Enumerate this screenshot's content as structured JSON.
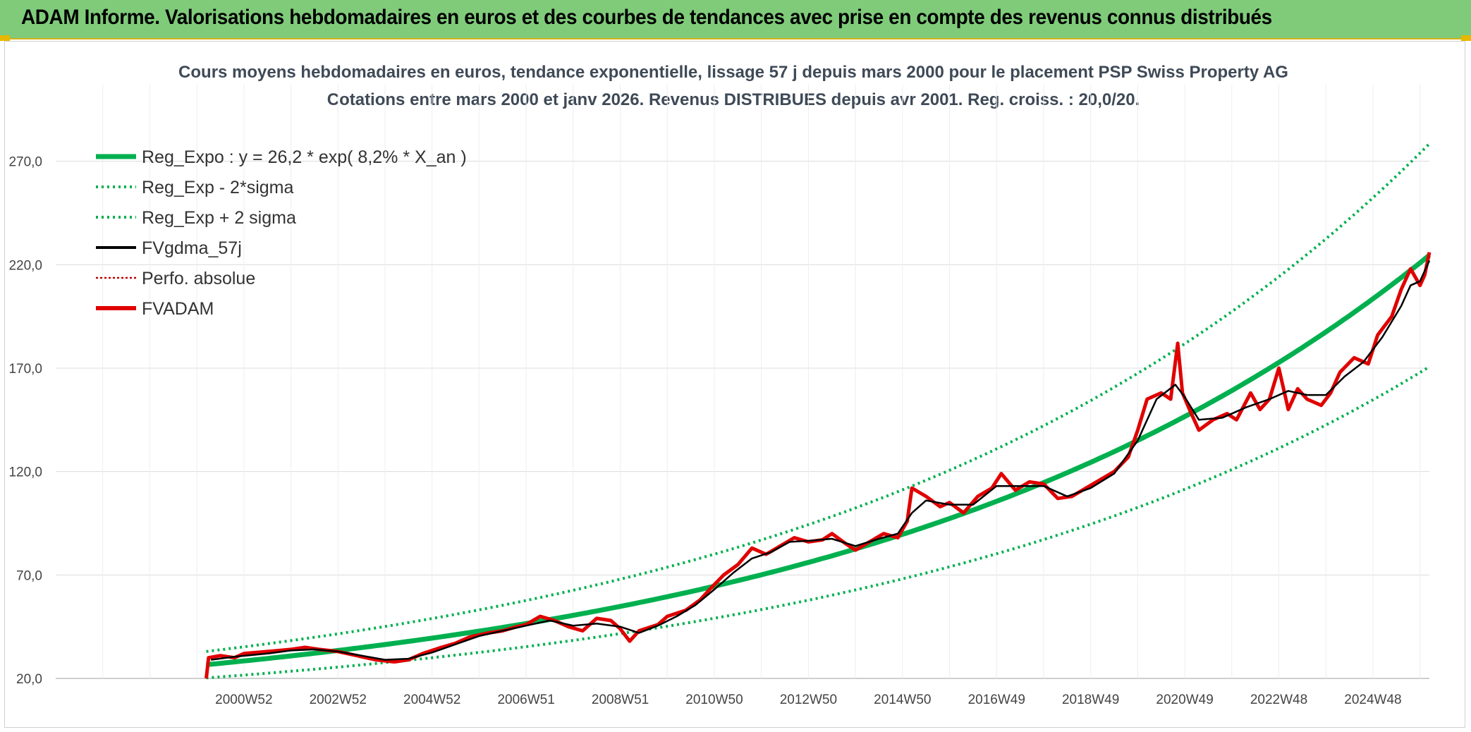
{
  "header": {
    "title": "ADAM Informe. Valorisations hebdomadaires en euros et des courbes de tendances avec prise en compte des revenus connus distribués"
  },
  "colors": {
    "trend": "#00b04f",
    "band": "#00b04f",
    "gdma": "#000000",
    "perfo": "#c00000",
    "fvadam": "#e00000",
    "grid": "#dcdcdc",
    "banner": "#7fcb7a"
  },
  "chart_data": {
    "type": "line",
    "title_line1": "Cours moyens hebdomadaires en euros, tendance exponentielle, lissage 57 j depuis mars 2000 pour le placement PSP Swiss Property AG",
    "title_line2": "Cotations entre mars 2000 et janv 2026. Revenus DISTRIBUES depuis avr 2001. Reg. croiss. : 20,0/20.",
    "ylim": [
      20,
      290
    ],
    "y_ticks": [
      "20,0",
      "70,0",
      "120,0",
      "170,0",
      "220,0",
      "270,0"
    ],
    "y_tick_values": [
      20,
      70,
      120,
      170,
      220,
      270
    ],
    "x_ticks": [
      "2000W52",
      "2002W52",
      "2004W52",
      "2006W51",
      "2008W51",
      "2010W50",
      "2012W50",
      "2014W50",
      "2016W49",
      "2018W49",
      "2020W49",
      "2022W48",
      "2024W48"
    ],
    "x_tick_years": [
      2001,
      2003,
      2005,
      2007,
      2009,
      2011,
      2013,
      2015,
      2017,
      2019,
      2021,
      2023,
      2025
    ],
    "x_range_years": [
      1997,
      2026.2
    ],
    "series_start_year": 2000.2,
    "trend": {
      "a": 26.2,
      "rate": 0.082,
      "sigma_factor": 0.24
    },
    "legend": [
      {
        "label": "Reg_Expo : y = 26,2 * exp( 8,2% *  X_an )",
        "style": "trend"
      },
      {
        "label": "Reg_Exp - 2*sigma",
        "style": "band"
      },
      {
        "label": "Reg_Exp + 2 sigma",
        "style": "band"
      },
      {
        "label": "FVgdma_57j",
        "style": "gdma"
      },
      {
        "label": "Perfo. absolue",
        "style": "perfo"
      },
      {
        "label": "FVADAM",
        "style": "fvadam"
      }
    ],
    "fvadam": [
      [
        2000.2,
        20
      ],
      [
        2000.25,
        30
      ],
      [
        2000.5,
        31
      ],
      [
        2000.8,
        30
      ],
      [
        2001.0,
        32
      ],
      [
        2001.5,
        33
      ],
      [
        2002.0,
        34
      ],
      [
        2002.3,
        35
      ],
      [
        2002.6,
        34
      ],
      [
        2003.0,
        33
      ],
      [
        2003.4,
        31
      ],
      [
        2003.8,
        29
      ],
      [
        2004.2,
        28
      ],
      [
        2004.5,
        29
      ],
      [
        2004.8,
        32
      ],
      [
        2005.2,
        35
      ],
      [
        2005.5,
        37
      ],
      [
        2005.8,
        40
      ],
      [
        2006.2,
        42
      ],
      [
        2006.5,
        43
      ],
      [
        2006.8,
        45
      ],
      [
        2007.0,
        46
      ],
      [
        2007.3,
        50
      ],
      [
        2007.6,
        48
      ],
      [
        2007.9,
        45
      ],
      [
        2008.2,
        43
      ],
      [
        2008.5,
        49
      ],
      [
        2008.8,
        48
      ],
      [
        2009.0,
        44
      ],
      [
        2009.2,
        38
      ],
      [
        2009.4,
        43
      ],
      [
        2009.8,
        46
      ],
      [
        2010.0,
        50
      ],
      [
        2010.4,
        53
      ],
      [
        2010.7,
        58
      ],
      [
        2010.9,
        63
      ],
      [
        2011.2,
        70
      ],
      [
        2011.5,
        75
      ],
      [
        2011.8,
        83
      ],
      [
        2012.1,
        80
      ],
      [
        2012.4,
        84
      ],
      [
        2012.7,
        88
      ],
      [
        2013.0,
        86
      ],
      [
        2013.3,
        87
      ],
      [
        2013.5,
        90
      ],
      [
        2013.8,
        85
      ],
      [
        2014.0,
        82
      ],
      [
        2014.3,
        86
      ],
      [
        2014.6,
        90
      ],
      [
        2014.9,
        88
      ],
      [
        2015.1,
        96
      ],
      [
        2015.2,
        112
      ],
      [
        2015.5,
        108
      ],
      [
        2015.8,
        103
      ],
      [
        2016.0,
        105
      ],
      [
        2016.3,
        100
      ],
      [
        2016.6,
        108
      ],
      [
        2016.9,
        112
      ],
      [
        2017.1,
        119
      ],
      [
        2017.4,
        111
      ],
      [
        2017.7,
        115
      ],
      [
        2018.0,
        114
      ],
      [
        2018.3,
        107
      ],
      [
        2018.6,
        108
      ],
      [
        2018.9,
        112
      ],
      [
        2019.2,
        116
      ],
      [
        2019.5,
        120
      ],
      [
        2019.8,
        127
      ],
      [
        2020.0,
        140
      ],
      [
        2020.2,
        155
      ],
      [
        2020.5,
        158
      ],
      [
        2020.7,
        155
      ],
      [
        2020.85,
        182
      ],
      [
        2020.95,
        158
      ],
      [
        2021.1,
        150
      ],
      [
        2021.3,
        140
      ],
      [
        2021.6,
        145
      ],
      [
        2021.9,
        148
      ],
      [
        2022.1,
        145
      ],
      [
        2022.4,
        158
      ],
      [
        2022.6,
        150
      ],
      [
        2022.8,
        155
      ],
      [
        2023.0,
        170
      ],
      [
        2023.2,
        150
      ],
      [
        2023.4,
        160
      ],
      [
        2023.6,
        155
      ],
      [
        2023.9,
        152
      ],
      [
        2024.1,
        158
      ],
      [
        2024.3,
        168
      ],
      [
        2024.6,
        175
      ],
      [
        2024.9,
        172
      ],
      [
        2025.1,
        186
      ],
      [
        2025.4,
        195
      ],
      [
        2025.6,
        208
      ],
      [
        2025.8,
        218
      ],
      [
        2026.0,
        210
      ],
      [
        2026.1,
        215
      ],
      [
        2026.2,
        226
      ]
    ],
    "fvgdma": [
      [
        2000.3,
        29
      ],
      [
        2000.8,
        30.5
      ],
      [
        2001.5,
        32
      ],
      [
        2002.0,
        33.5
      ],
      [
        2002.5,
        34
      ],
      [
        2003.0,
        33
      ],
      [
        2003.5,
        31
      ],
      [
        2004.0,
        29
      ],
      [
        2004.5,
        29.5
      ],
      [
        2005.0,
        32.5
      ],
      [
        2005.5,
        36.5
      ],
      [
        2006.0,
        40.5
      ],
      [
        2006.5,
        43
      ],
      [
        2007.0,
        45.5
      ],
      [
        2007.5,
        48
      ],
      [
        2008.0,
        45.5
      ],
      [
        2008.5,
        46.5
      ],
      [
        2009.0,
        45
      ],
      [
        2009.4,
        42
      ],
      [
        2009.8,
        45.5
      ],
      [
        2010.2,
        50
      ],
      [
        2010.6,
        55.5
      ],
      [
        2011.0,
        63
      ],
      [
        2011.4,
        71
      ],
      [
        2011.8,
        78
      ],
      [
        2012.2,
        81
      ],
      [
        2012.6,
        86
      ],
      [
        2013.0,
        86.5
      ],
      [
        2013.5,
        87.5
      ],
      [
        2014.0,
        84
      ],
      [
        2014.5,
        87.5
      ],
      [
        2014.9,
        90
      ],
      [
        2015.2,
        100
      ],
      [
        2015.5,
        106
      ],
      [
        2016.0,
        104
      ],
      [
        2016.5,
        104
      ],
      [
        2017.0,
        113
      ],
      [
        2017.5,
        113
      ],
      [
        2018.0,
        113
      ],
      [
        2018.5,
        108
      ],
      [
        2019.0,
        112
      ],
      [
        2019.5,
        119
      ],
      [
        2020.0,
        135
      ],
      [
        2020.4,
        155
      ],
      [
        2020.8,
        162
      ],
      [
        2021.0,
        156
      ],
      [
        2021.3,
        145
      ],
      [
        2021.8,
        146
      ],
      [
        2022.3,
        151
      ],
      [
        2022.8,
        155
      ],
      [
        2023.2,
        159
      ],
      [
        2023.6,
        157
      ],
      [
        2024.0,
        157
      ],
      [
        2024.4,
        166
      ],
      [
        2024.8,
        173
      ],
      [
        2025.2,
        185
      ],
      [
        2025.6,
        200
      ],
      [
        2025.8,
        210
      ],
      [
        2026.0,
        212
      ],
      [
        2026.2,
        222
      ]
    ]
  }
}
